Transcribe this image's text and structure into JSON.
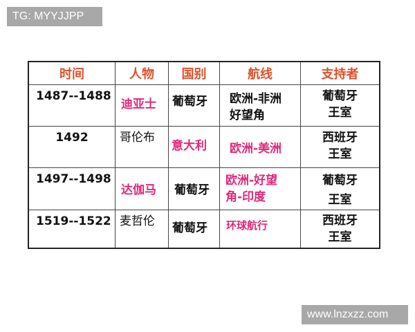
{
  "watermarks": {
    "top_left": "TG: MYYJJPP",
    "bottom_right": "www.lnzxzz.com"
  },
  "table": {
    "headers": [
      "时间",
      "人物",
      "国别",
      "航线",
      "支持者"
    ],
    "rows": [
      {
        "time": "1487--1488",
        "person": "迪亚士",
        "country": "葡萄牙",
        "route": [
          "欧洲-非洲",
          "好望角"
        ],
        "supporter": [
          "葡萄牙",
          "王室"
        ]
      },
      {
        "time": "1492",
        "person": "哥伦布",
        "country": "意大利",
        "route": [
          "欧洲-美洲"
        ],
        "supporter": [
          "西班牙",
          "王室"
        ]
      },
      {
        "time": "1497--1498",
        "person": "达伽马",
        "country": "葡萄牙",
        "route": [
          "欧洲-好望",
          "角-印度"
        ],
        "supporter": [
          "葡萄牙",
          "王室"
        ]
      },
      {
        "time": "1519--1522",
        "person": "麦哲伦",
        "country": "葡萄牙",
        "route": [
          "环球航行"
        ],
        "supporter": [
          "西班牙",
          "王室"
        ]
      }
    ]
  },
  "colors": {
    "header": "#e0502a",
    "highlight": "#e0287a"
  }
}
